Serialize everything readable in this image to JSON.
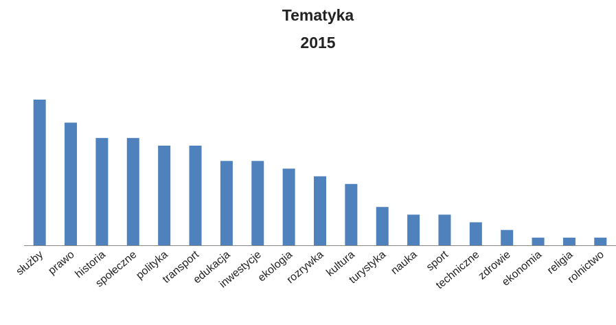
{
  "chart_data": {
    "type": "bar",
    "title": "Tematyka",
    "subtitle": "2015",
    "categories": [
      "służby",
      "prawo",
      "historia",
      "społeczne",
      "polityka",
      "transport",
      "edukacja",
      "inwestycje",
      "ekologia",
      "rozrywka",
      "kultura",
      "turystyka",
      "nauka",
      "sport",
      "techniczne",
      "zdrowie",
      "ekonomia",
      "religia",
      "rolnictwo"
    ],
    "values": [
      19,
      16,
      14,
      14,
      13,
      13,
      11,
      11,
      10,
      9,
      8,
      5,
      4,
      4,
      3,
      2,
      1,
      1,
      1
    ],
    "color": "#4f81bd"
  }
}
